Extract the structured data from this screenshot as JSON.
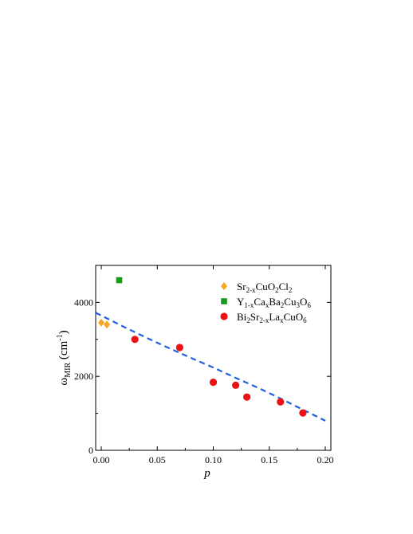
{
  "chart_data": {
    "type": "scatter",
    "xlabel": "p",
    "ylabel": {
      "main": "ω",
      "sub": "MIR",
      "unit_prefix": " (cm",
      "unit_sup": "-1",
      "unit_suffix": ")"
    },
    "xlim": [
      -0.005,
      0.205
    ],
    "ylim": [
      0,
      5000
    ],
    "xticks": [
      0.0,
      0.05,
      0.1,
      0.15,
      0.2
    ],
    "xtick_labels": [
      "0.00",
      "0.05",
      "0.10",
      "0.15",
      "0.20"
    ],
    "yticks": [
      0,
      2000,
      4000
    ],
    "ytick_labels": [
      "0",
      "2000",
      "4000"
    ],
    "grid": false,
    "legend_position": "top-right",
    "series": [
      {
        "name": [
          {
            "t": "Sr"
          },
          {
            "t": "2-x",
            "s": "sub"
          },
          {
            "t": "CuO"
          },
          {
            "t": "2",
            "s": "sub"
          },
          {
            "t": "Cl"
          },
          {
            "t": "2",
            "s": "sub"
          }
        ],
        "marker": "diamond",
        "color": "#f5a623",
        "x": [
          0.0,
          0.005
        ],
        "y": [
          3450,
          3400
        ]
      },
      {
        "name": [
          {
            "t": "Y"
          },
          {
            "t": "1-x",
            "s": "sub"
          },
          {
            "t": "Ca"
          },
          {
            "t": "x",
            "s": "sub"
          },
          {
            "t": "Ba"
          },
          {
            "t": "2",
            "s": "sub"
          },
          {
            "t": "Cu"
          },
          {
            "t": "3",
            "s": "sub"
          },
          {
            "t": "O"
          },
          {
            "t": "6",
            "s": "sub"
          }
        ],
        "marker": "square",
        "color": "#1a9a1a",
        "x": [
          0.016
        ],
        "y": [
          4600
        ]
      },
      {
        "name": [
          {
            "t": "Bi"
          },
          {
            "t": "2",
            "s": "sub"
          },
          {
            "t": "Sr"
          },
          {
            "t": "2-x",
            "s": "sub"
          },
          {
            "t": "La"
          },
          {
            "t": "x",
            "s": "sub"
          },
          {
            "t": "CuO"
          },
          {
            "t": "6",
            "s": "sub"
          }
        ],
        "marker": "circle",
        "color": "#ee1111",
        "x": [
          0.03,
          0.07,
          0.1,
          0.12,
          0.13,
          0.16,
          0.18
        ],
        "y": [
          3000,
          2780,
          1840,
          1760,
          1440,
          1310,
          1010
        ]
      }
    ],
    "fit_line": {
      "style": "dashed",
      "color": "#1f5fe0",
      "x": [
        -0.005,
        0.02,
        0.04,
        0.06,
        0.08,
        0.1,
        0.12,
        0.14,
        0.16,
        0.18,
        0.2
      ],
      "y": [
        3720,
        3340,
        3050,
        2770,
        2500,
        2240,
        1960,
        1690,
        1400,
        1100,
        800
      ]
    }
  }
}
